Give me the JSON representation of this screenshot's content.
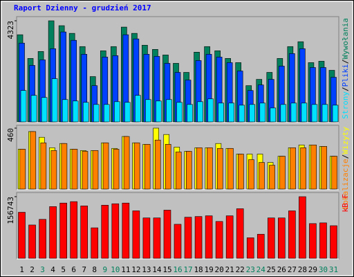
{
  "chart_data": [
    {
      "type": "bar",
      "title": "Raport Dzienny -  grudzień 2017",
      "categories": [
        "1",
        "2",
        "3",
        "4",
        "5",
        "6",
        "7",
        "8",
        "9",
        "10",
        "11",
        "12",
        "13",
        "14",
        "15",
        "16",
        "17",
        "18",
        "19",
        "20",
        "21",
        "22",
        "23",
        "24",
        "25",
        "26",
        "27",
        "28",
        "29",
        "30",
        "31"
      ],
      "category_colors": [
        "#000000",
        "#000000",
        "#00805c",
        "#000000",
        "#000000",
        "#000000",
        "#000000",
        "#000000",
        "#00805c",
        "#00805c",
        "#000000",
        "#000000",
        "#000000",
        "#000000",
        "#000000",
        "#00805c",
        "#00805c",
        "#000000",
        "#000000",
        "#000000",
        "#000000",
        "#000000",
        "#00805c",
        "#00805c",
        "#000000",
        "#000000",
        "#000000",
        "#000000",
        "#000000",
        "#00805c",
        "#00805c"
      ],
      "separator": "/",
      "ylim": [
        0,
        4323
      ],
      "yticks": [
        4323
      ],
      "series": [
        {
          "name": "Wywołania",
          "color": "#00805c",
          "values": [
            3727,
            2713,
            3011,
            4323,
            4114,
            3786,
            3220,
            1938,
            3041,
            3220,
            4054,
            3786,
            3279,
            3100,
            2862,
            2504,
            2117,
            2981,
            3220,
            3041,
            2713,
            2534,
            1550,
            1819,
            2117,
            2713,
            3220,
            3428,
            2534,
            2594,
            2206
          ]
        },
        {
          "name": "Pliki",
          "color": "#0040ff",
          "values": [
            3369,
            2415,
            2653,
            3130,
            3846,
            3488,
            2892,
            1550,
            2772,
            2832,
            3727,
            3548,
            2892,
            2802,
            2504,
            2117,
            1789,
            2623,
            2892,
            2772,
            2534,
            2176,
            1341,
            1580,
            1819,
            2385,
            2921,
            3130,
            2325,
            2325,
            1908
          ]
        },
        {
          "name": "Strony",
          "color": "#00e0ff",
          "values": [
            1341,
            1133,
            1043,
            1848,
            954,
            894,
            835,
            745,
            745,
            864,
            835,
            1133,
            954,
            894,
            954,
            835,
            745,
            864,
            984,
            805,
            805,
            715,
            745,
            805,
            596,
            745,
            805,
            805,
            745,
            745,
            715
          ]
        }
      ]
    },
    {
      "type": "bar",
      "separator": "/",
      "ylim": [
        0,
        460
      ],
      "yticks": [
        460
      ],
      "series": [
        {
          "name": "Wizyty",
          "color": "#ffff00",
          "values": [
            301,
            434,
            391,
            312,
            344,
            301,
            291,
            291,
            349,
            307,
            397,
            349,
            338,
            460,
            412,
            317,
            285,
            312,
            312,
            344,
            307,
            264,
            264,
            264,
            201,
            248,
            312,
            333,
            333,
            322,
            248
          ]
        },
        {
          "name": "Lokalizacje",
          "color": "#ff8000",
          "values": [
            301,
            434,
            349,
            291,
            344,
            301,
            285,
            291,
            349,
            301,
            397,
            349,
            338,
            370,
            338,
            280,
            285,
            312,
            312,
            307,
            307,
            264,
            222,
            201,
            180,
            248,
            312,
            312,
            333,
            322,
            248
          ]
        }
      ]
    },
    {
      "type": "bar",
      "ylim": [
        0,
        156743
      ],
      "yticks": [
        156743
      ],
      "series": [
        {
          "name": "kB F",
          "color": "#ff0000",
          "values": [
            117108,
            84679,
            99092,
            131521,
            140529,
            144132,
            133322,
            77472,
            135124,
            138727,
            140529,
            120711,
            102695,
            102695,
            122512,
            86481,
            104497,
            106298,
            108100,
            93687,
            108100,
            126116,
            52250,
            61258,
            102695,
            102695,
            120711,
            156743,
            88282,
            90083,
            82877
          ]
        }
      ]
    }
  ]
}
